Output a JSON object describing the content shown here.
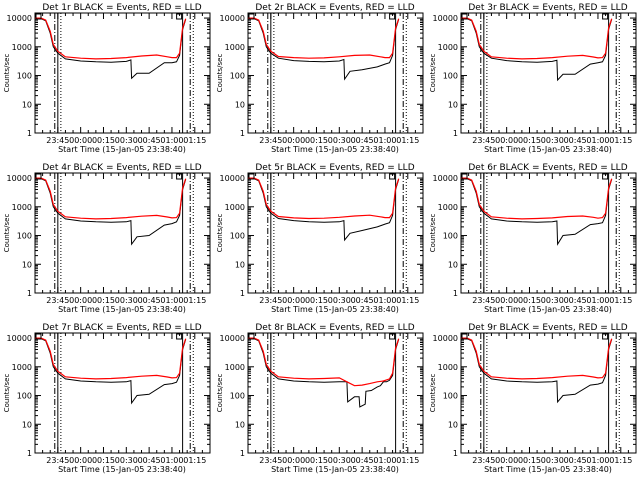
{
  "window": {
    "background": "#ffffff"
  },
  "colors": {
    "events": "#000000",
    "lld": "#ff0000",
    "axes": "#000000"
  },
  "shared": {
    "xlabel": "Start Time (15-Jan-05 23:38:40)",
    "ylabel": "Counts/sec",
    "x_tick_labels": [
      "23:45",
      "00:00",
      "00:15",
      "00:30",
      "00:45",
      "01:00",
      "01:15"
    ],
    "y_tick_labels": [
      "1",
      "10",
      "100",
      "1000",
      "10000"
    ],
    "y_scale": "log",
    "ylim": [
      1,
      15000
    ],
    "x_unit": "minutes",
    "xlim": [
      -15,
      100
    ]
  },
  "chart_data": [
    {
      "type": "line",
      "title": "Det 1r BLACK = Events, RED = LLD",
      "markers": {
        "solid": [
          0,
          82
        ],
        "dashdot": [
          -2,
          87
        ],
        "dotted": [
          2,
          89
        ]
      },
      "series": [
        {
          "name": "BLACK = Events",
          "x": [
            -15,
            -11,
            -8,
            -5,
            -3,
            0,
            5,
            15,
            25,
            35,
            45,
            48,
            48.5,
            52,
            60,
            70,
            75,
            78,
            80,
            82,
            84
          ],
          "y": [
            9500,
            9500,
            8000,
            3000,
            1000,
            600,
            380,
            320,
            300,
            290,
            310,
            350,
            80,
            120,
            120,
            280,
            280,
            300,
            500,
            4000,
            9000
          ]
        },
        {
          "name": "RED = LLD",
          "x": [
            -15,
            -11,
            -8,
            -5,
            -3,
            0,
            5,
            15,
            25,
            35,
            45,
            55,
            65,
            72,
            75,
            78,
            80,
            82,
            84
          ],
          "y": [
            10000,
            10000,
            8500,
            3500,
            1200,
            700,
            450,
            400,
            380,
            390,
            420,
            480,
            520,
            450,
            420,
            420,
            600,
            4500,
            9500
          ]
        }
      ]
    },
    {
      "type": "line",
      "title": "Det 2r BLACK = Events, RED = LLD",
      "markers": {
        "solid": [
          0,
          82
        ],
        "dashdot": [
          -2,
          87
        ],
        "dotted": [
          2,
          89
        ]
      },
      "series": [
        {
          "name": "BLACK = Events",
          "x": [
            -15,
            -11,
            -8,
            -5,
            -3,
            0,
            5,
            15,
            25,
            35,
            45,
            48,
            48.5,
            52,
            60,
            70,
            75,
            78,
            80,
            82,
            84
          ],
          "y": [
            9500,
            9500,
            8000,
            3000,
            1000,
            600,
            400,
            330,
            310,
            300,
            320,
            360,
            75,
            140,
            160,
            200,
            250,
            280,
            500,
            4000,
            9000
          ]
        },
        {
          "name": "RED = LLD",
          "x": [
            -15,
            -11,
            -8,
            -5,
            -3,
            0,
            5,
            15,
            25,
            35,
            45,
            55,
            65,
            72,
            75,
            78,
            80,
            82,
            84
          ],
          "y": [
            10000,
            10000,
            8500,
            3500,
            1200,
            700,
            460,
            420,
            400,
            410,
            450,
            500,
            520,
            450,
            420,
            420,
            600,
            4500,
            9500
          ]
        }
      ]
    },
    {
      "type": "line",
      "title": "Det 3r BLACK = Events, RED = LLD",
      "markers": {
        "solid": [
          0,
          82
        ],
        "dashdot": [
          -2,
          87
        ],
        "dotted": [
          2,
          89
        ]
      },
      "series": [
        {
          "name": "BLACK = Events",
          "x": [
            -15,
            -11,
            -8,
            -5,
            -3,
            0,
            5,
            15,
            25,
            35,
            45,
            48,
            48.5,
            52,
            60,
            70,
            75,
            78,
            80,
            82,
            84
          ],
          "y": [
            9500,
            9500,
            8000,
            3000,
            1000,
            600,
            400,
            330,
            300,
            290,
            310,
            340,
            70,
            110,
            110,
            250,
            280,
            300,
            500,
            4000,
            9000
          ]
        },
        {
          "name": "RED = LLD",
          "x": [
            -15,
            -11,
            -8,
            -5,
            -3,
            0,
            5,
            15,
            25,
            35,
            45,
            55,
            65,
            72,
            75,
            78,
            80,
            82,
            84
          ],
          "y": [
            10000,
            10000,
            8500,
            3500,
            1200,
            700,
            450,
            400,
            380,
            390,
            420,
            470,
            500,
            440,
            410,
            420,
            600,
            4500,
            9500
          ]
        }
      ]
    },
    {
      "type": "line",
      "title": "Det 4r BLACK = Events, RED = LLD",
      "markers": {
        "solid": [
          0,
          82
        ],
        "dashdot": [
          -2,
          87
        ],
        "dotted": [
          2,
          89
        ]
      },
      "series": [
        {
          "name": "BLACK = Events",
          "x": [
            -15,
            -11,
            -8,
            -5,
            -3,
            0,
            5,
            15,
            25,
            35,
            45,
            48,
            48.5,
            52,
            60,
            70,
            75,
            78,
            80,
            82,
            84
          ],
          "y": [
            9500,
            9500,
            8000,
            3000,
            1000,
            600,
            380,
            320,
            300,
            290,
            300,
            330,
            50,
            90,
            100,
            230,
            260,
            300,
            500,
            4000,
            9000
          ]
        },
        {
          "name": "RED = LLD",
          "x": [
            -15,
            -11,
            -8,
            -5,
            -3,
            0,
            5,
            15,
            25,
            35,
            45,
            55,
            65,
            72,
            75,
            78,
            80,
            82,
            84
          ],
          "y": [
            10000,
            10000,
            8500,
            3500,
            1200,
            700,
            450,
            400,
            380,
            390,
            420,
            470,
            500,
            440,
            410,
            420,
            600,
            4500,
            9500
          ]
        }
      ]
    },
    {
      "type": "line",
      "title": "Det 5r BLACK = Events, RED = LLD",
      "markers": {
        "solid": [
          0,
          82
        ],
        "dashdot": [
          -2,
          87
        ],
        "dotted": [
          2,
          89
        ]
      },
      "series": [
        {
          "name": "BLACK = Events",
          "x": [
            -15,
            -11,
            -8,
            -5,
            -3,
            0,
            5,
            15,
            25,
            35,
            45,
            48,
            48.5,
            52,
            60,
            70,
            75,
            78,
            80,
            82,
            84
          ],
          "y": [
            9500,
            9500,
            8000,
            3000,
            1000,
            600,
            390,
            330,
            300,
            290,
            300,
            330,
            70,
            120,
            150,
            200,
            250,
            280,
            500,
            4000,
            9000
          ]
        },
        {
          "name": "RED = LLD",
          "x": [
            -15,
            -11,
            -8,
            -5,
            -3,
            0,
            5,
            15,
            25,
            35,
            45,
            55,
            65,
            72,
            75,
            78,
            80,
            82,
            84
          ],
          "y": [
            10000,
            10000,
            8500,
            3500,
            1200,
            700,
            460,
            410,
            390,
            400,
            430,
            480,
            510,
            450,
            420,
            420,
            600,
            4500,
            9500
          ]
        }
      ]
    },
    {
      "type": "line",
      "title": "Det 6r BLACK = Events, RED = LLD",
      "markers": {
        "solid": [
          0,
          82
        ],
        "dashdot": [
          -2,
          87
        ],
        "dotted": [
          2,
          89
        ]
      },
      "series": [
        {
          "name": "BLACK = Events",
          "x": [
            -15,
            -11,
            -8,
            -5,
            -3,
            0,
            5,
            15,
            25,
            35,
            45,
            48,
            48.5,
            52,
            60,
            70,
            75,
            78,
            80,
            82,
            84
          ],
          "y": [
            9500,
            9500,
            8000,
            3000,
            1000,
            600,
            380,
            320,
            300,
            290,
            300,
            320,
            50,
            100,
            110,
            240,
            260,
            280,
            500,
            4000,
            9000
          ]
        },
        {
          "name": "RED = LLD",
          "x": [
            -15,
            -11,
            -8,
            -5,
            -3,
            0,
            5,
            15,
            25,
            35,
            45,
            55,
            65,
            72,
            75,
            78,
            80,
            82,
            84
          ],
          "y": [
            10000,
            10000,
            8500,
            3500,
            1200,
            700,
            450,
            400,
            380,
            390,
            410,
            460,
            480,
            430,
            400,
            420,
            600,
            4500,
            9500
          ]
        }
      ]
    },
    {
      "type": "line",
      "title": "Det 7r BLACK = Events, RED = LLD",
      "markers": {
        "solid": [
          0,
          82
        ],
        "dashdot": [
          -2,
          87
        ],
        "dotted": [
          2,
          89
        ]
      },
      "series": [
        {
          "name": "BLACK = Events",
          "x": [
            -15,
            -11,
            -8,
            -5,
            -3,
            0,
            5,
            15,
            25,
            35,
            45,
            48,
            48.5,
            52,
            60,
            70,
            75,
            78,
            80,
            82,
            84
          ],
          "y": [
            9500,
            9500,
            8000,
            3000,
            1000,
            600,
            380,
            320,
            300,
            290,
            300,
            330,
            55,
            100,
            110,
            240,
            260,
            290,
            500,
            4000,
            9000
          ]
        },
        {
          "name": "RED = LLD",
          "x": [
            -15,
            -11,
            -8,
            -5,
            -3,
            0,
            5,
            15,
            25,
            35,
            45,
            55,
            65,
            72,
            75,
            78,
            80,
            82,
            84
          ],
          "y": [
            10000,
            10000,
            8500,
            3500,
            1200,
            700,
            450,
            400,
            380,
            390,
            420,
            470,
            500,
            440,
            410,
            420,
            600,
            4500,
            9500
          ]
        }
      ]
    },
    {
      "type": "line",
      "title": "Det 8r BLACK = Events, RED = LLD",
      "markers": {
        "solid": [
          0,
          82
        ],
        "dashdot": [
          -2,
          87
        ],
        "dotted": [
          2,
          89
        ]
      },
      "series": [
        {
          "name": "BLACK = Events",
          "x": [
            -15,
            -11,
            -8,
            -5,
            -3,
            0,
            5,
            15,
            25,
            35,
            45,
            50,
            50.5,
            55,
            58,
            58.5,
            62,
            62.5,
            66,
            70,
            72,
            74,
            76,
            78,
            80,
            82,
            84
          ],
          "y": [
            9500,
            9500,
            8000,
            3000,
            1000,
            600,
            380,
            320,
            300,
            290,
            300,
            300,
            60,
            90,
            90,
            40,
            50,
            140,
            150,
            200,
            220,
            300,
            300,
            340,
            500,
            4000,
            9000
          ]
        },
        {
          "name": "RED = LLD",
          "x": [
            -15,
            -11,
            -8,
            -5,
            -3,
            0,
            5,
            15,
            25,
            35,
            45,
            50,
            55,
            60,
            65,
            70,
            74,
            78,
            80,
            82,
            84
          ],
          "y": [
            10000,
            10000,
            8500,
            3500,
            1200,
            700,
            450,
            400,
            380,
            390,
            410,
            300,
            220,
            230,
            260,
            300,
            320,
            380,
            600,
            4500,
            9500
          ]
        }
      ]
    },
    {
      "type": "line",
      "title": "Det 9r BLACK = Events, RED = LLD",
      "markers": {
        "solid": [
          0,
          82
        ],
        "dashdot": [
          -2,
          87
        ],
        "dotted": [
          2,
          89
        ]
      },
      "series": [
        {
          "name": "BLACK = Events",
          "x": [
            -15,
            -11,
            -8,
            -5,
            -3,
            0,
            5,
            15,
            25,
            35,
            45,
            48,
            48.5,
            52,
            60,
            70,
            75,
            78,
            80,
            82,
            84
          ],
          "y": [
            9500,
            9500,
            8000,
            3000,
            1000,
            600,
            380,
            320,
            300,
            290,
            300,
            320,
            60,
            100,
            110,
            230,
            250,
            280,
            500,
            4000,
            9000
          ]
        },
        {
          "name": "RED = LLD",
          "x": [
            -15,
            -11,
            -8,
            -5,
            -3,
            0,
            5,
            15,
            25,
            35,
            45,
            55,
            65,
            72,
            75,
            78,
            80,
            82,
            84
          ],
          "y": [
            10000,
            10000,
            8500,
            3500,
            1200,
            700,
            450,
            400,
            380,
            390,
            420,
            470,
            500,
            440,
            410,
            420,
            600,
            4500,
            9500
          ]
        }
      ]
    }
  ]
}
